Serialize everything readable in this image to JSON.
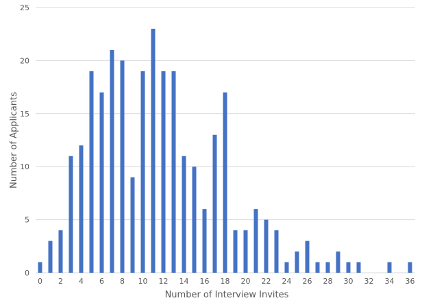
{
  "chart_data": {
    "type": "bar",
    "title": "",
    "xlabel": "Number of Interview Invites",
    "ylabel": "Number of Applicants",
    "x": [
      0,
      1,
      2,
      3,
      4,
      5,
      6,
      7,
      8,
      9,
      10,
      11,
      12,
      13,
      14,
      15,
      16,
      17,
      18,
      19,
      20,
      21,
      22,
      23,
      24,
      25,
      26,
      27,
      28,
      29,
      30,
      31,
      32,
      33,
      34,
      35,
      36
    ],
    "values": [
      1,
      3,
      4,
      11,
      12,
      19,
      17,
      21,
      20,
      9,
      19,
      23,
      19,
      19,
      11,
      10,
      6,
      13,
      17,
      4,
      4,
      6,
      5,
      4,
      1,
      2,
      3,
      1,
      1,
      2,
      1,
      1,
      0,
      0,
      1,
      0,
      1
    ],
    "x_tick_labels": [
      "0",
      "2",
      "4",
      "6",
      "8",
      "10",
      "12",
      "14",
      "16",
      "18",
      "20",
      "22",
      "24",
      "26",
      "28",
      "30",
      "32",
      "34",
      "36"
    ],
    "x_tick_values": [
      0,
      2,
      4,
      6,
      8,
      10,
      12,
      14,
      16,
      18,
      20,
      22,
      24,
      26,
      28,
      30,
      32,
      34,
      36
    ],
    "y_tick_labels": [
      "0",
      "5",
      "10",
      "15",
      "20",
      "25"
    ],
    "y_tick_values": [
      0,
      5,
      10,
      15,
      20,
      25
    ],
    "ylim": [
      0,
      25
    ],
    "xlim": [
      0,
      36
    ],
    "grid": true,
    "bar_color": "#4472c4"
  }
}
